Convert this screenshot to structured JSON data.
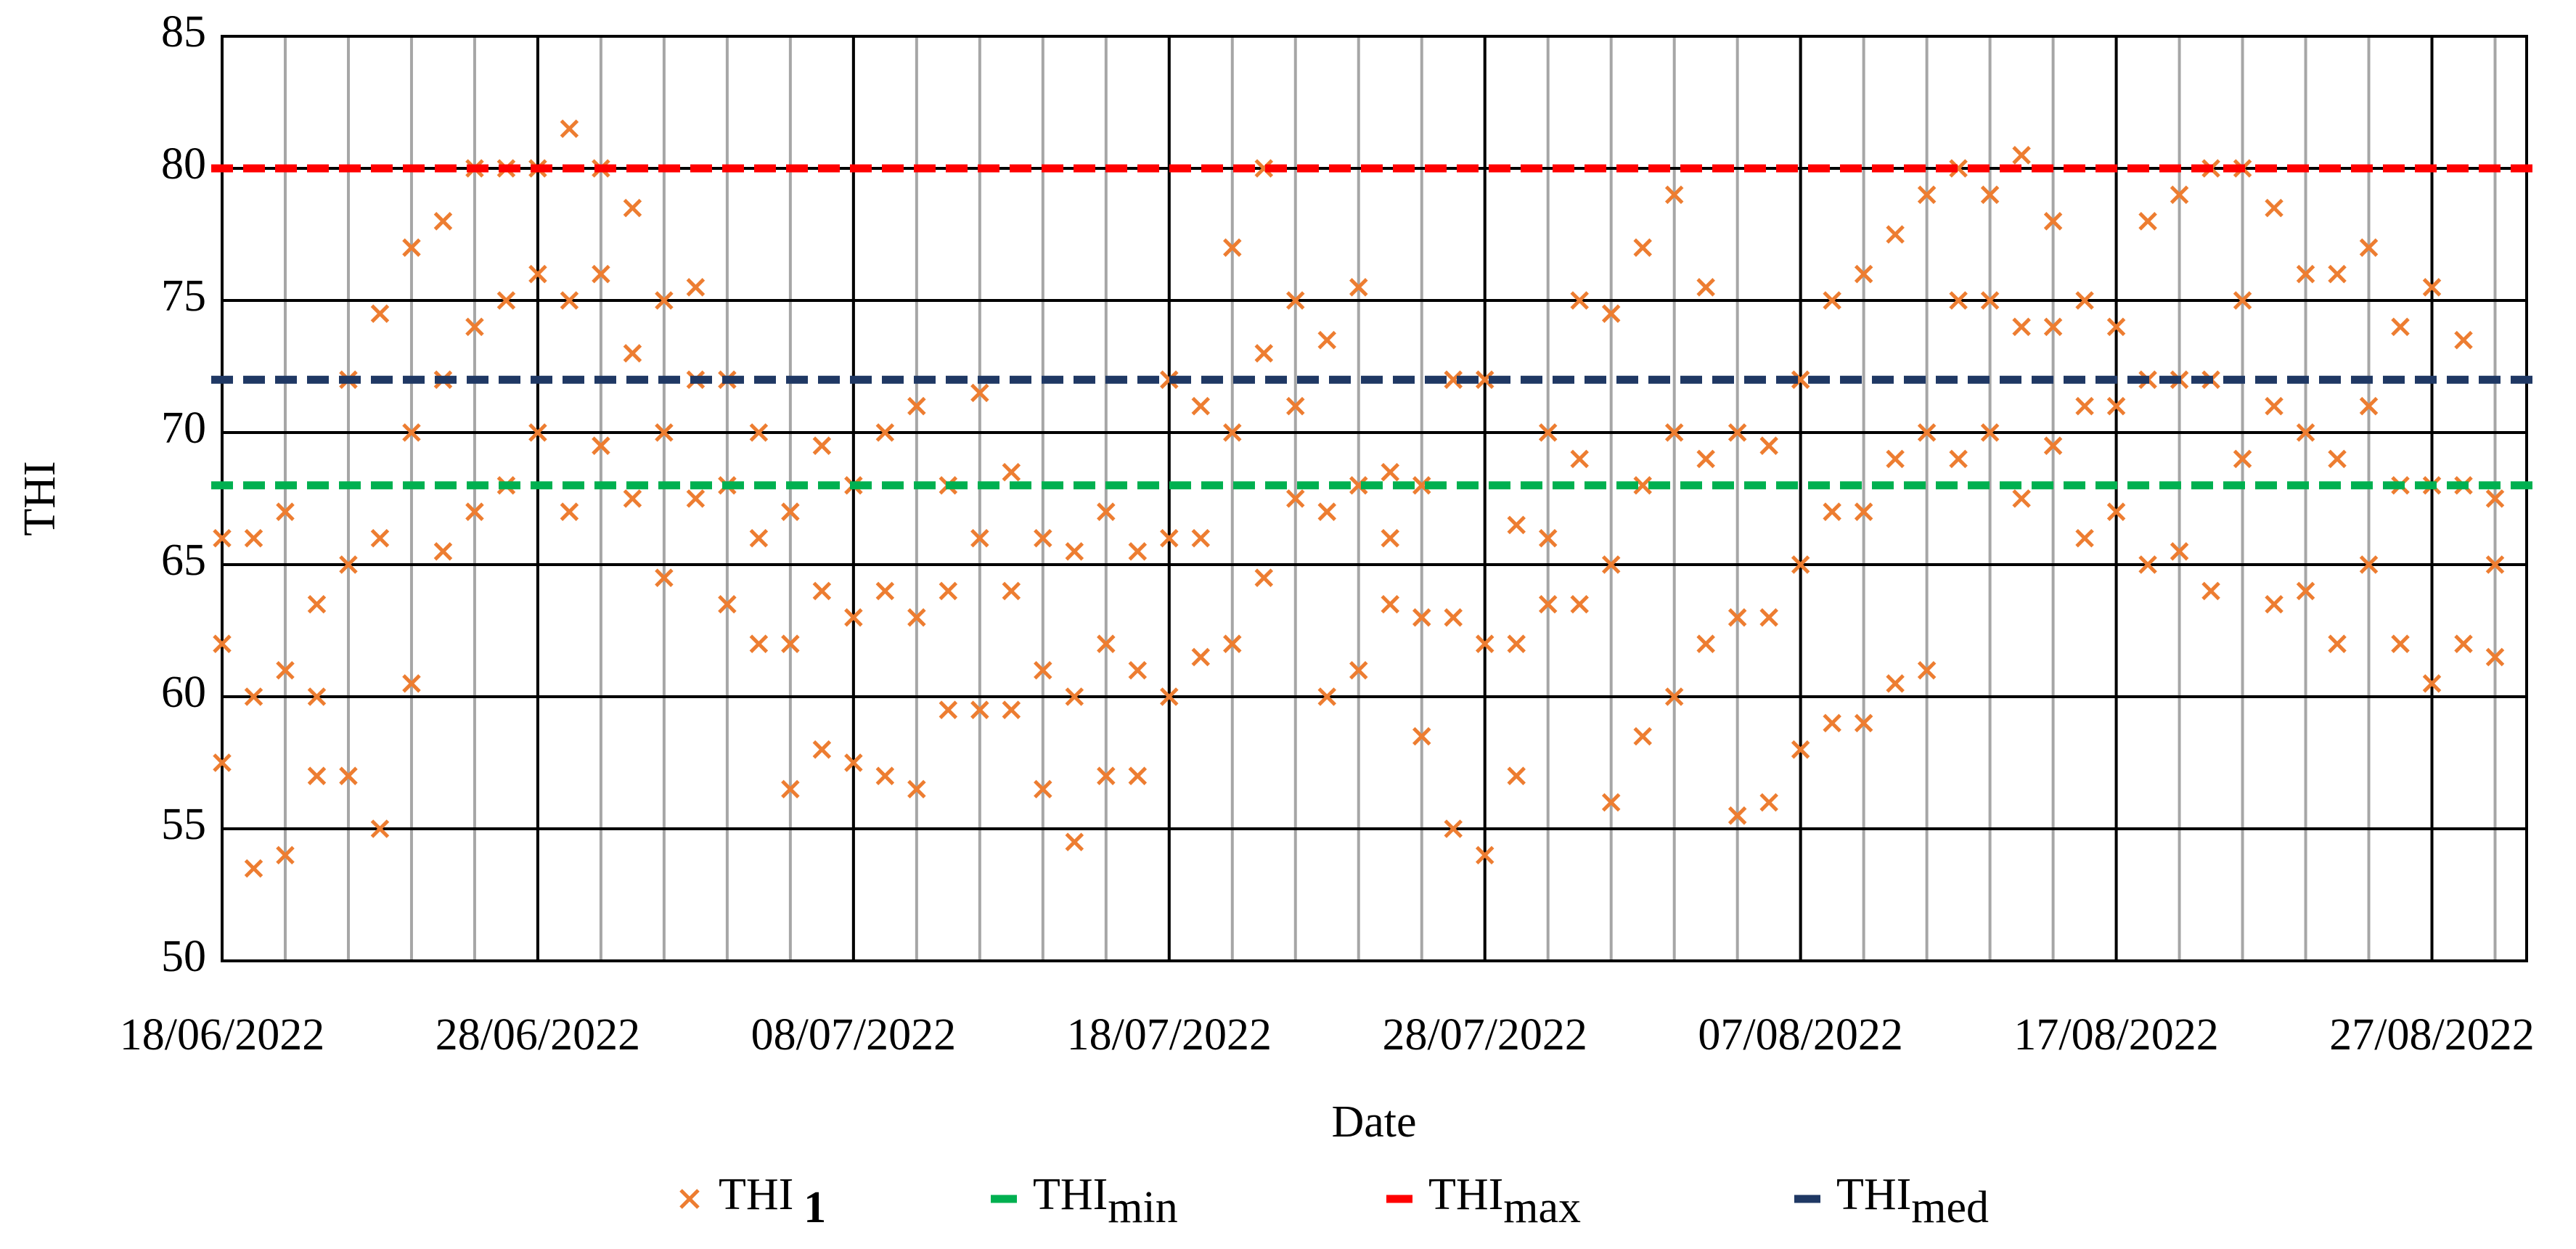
{
  "chart_data": {
    "type": "scatter",
    "x_label": "Date",
    "y_label": "THI",
    "xlim": [
      "18/06/2022",
      "30/08/2022"
    ],
    "xticks": [
      "18/06/2022",
      "28/06/2022",
      "08/07/2022",
      "18/07/2022",
      "28/07/2022",
      "07/08/2022",
      "17/08/2022",
      "27/08/2022"
    ],
    "minor_grid_step_days": 2,
    "ylim": [
      50,
      85
    ],
    "yticks": [
      50,
      55,
      60,
      65,
      70,
      75,
      80,
      85
    ],
    "grid": true,
    "legend": "bottom",
    "x": [
      "18/06/2022",
      "19/06/2022",
      "20/06/2022",
      "21/06/2022",
      "22/06/2022",
      "23/06/2022",
      "24/06/2022",
      "25/06/2022",
      "26/06/2022",
      "27/06/2022",
      "28/06/2022",
      "29/06/2022",
      "30/06/2022",
      "01/07/2022",
      "02/07/2022",
      "03/07/2022",
      "04/07/2022",
      "05/07/2022",
      "06/07/2022",
      "07/07/2022",
      "08/07/2022",
      "09/07/2022",
      "10/07/2022",
      "11/07/2022",
      "12/07/2022",
      "13/07/2022",
      "14/07/2022",
      "15/07/2022",
      "16/07/2022",
      "17/07/2022",
      "18/07/2022",
      "19/07/2022",
      "20/07/2022",
      "21/07/2022",
      "22/07/2022",
      "23/07/2022",
      "24/07/2022",
      "25/07/2022",
      "26/07/2022",
      "27/07/2022",
      "28/07/2022",
      "29/07/2022",
      "30/07/2022",
      "31/07/2022",
      "01/08/2022",
      "02/08/2022",
      "03/08/2022",
      "04/08/2022",
      "05/08/2022",
      "06/08/2022",
      "07/08/2022",
      "08/08/2022",
      "09/08/2022",
      "10/08/2022",
      "11/08/2022",
      "12/08/2022",
      "13/08/2022",
      "14/08/2022",
      "15/08/2022",
      "16/08/2022",
      "17/08/2022",
      "18/08/2022",
      "19/08/2022",
      "20/08/2022",
      "21/08/2022",
      "22/08/2022",
      "23/08/2022",
      "24/08/2022",
      "25/08/2022",
      "26/08/2022",
      "27/08/2022",
      "28/08/2022",
      "29/08/2022"
    ],
    "series": [
      {
        "name": "THI",
        "subscript": "1",
        "color": "#ed7d31",
        "marker": "x",
        "values": [
          [
            57.5,
            62,
            66
          ],
          [
            53.5,
            60,
            66
          ],
          [
            54,
            61,
            67
          ],
          [
            57,
            60,
            63.5
          ],
          [
            57,
            65,
            72
          ],
          [
            55,
            66,
            74.5
          ],
          [
            60.5,
            70,
            77
          ],
          [
            65.5,
            72,
            78
          ],
          [
            67,
            74,
            80
          ],
          [
            68,
            75,
            80
          ],
          [
            70,
            76,
            80
          ],
          [
            67,
            75,
            81.5
          ],
          [
            69.5,
            76,
            80
          ],
          [
            67.5,
            73,
            78.5
          ],
          [
            64.5,
            70,
            75
          ],
          [
            67.5,
            72,
            75.5
          ],
          [
            63.5,
            68,
            72
          ],
          [
            62,
            66,
            70
          ],
          [
            56.5,
            62,
            67
          ],
          [
            58,
            64,
            69.5
          ],
          [
            57.5,
            63,
            68
          ],
          [
            57,
            64,
            70
          ],
          [
            56.5,
            63,
            71
          ],
          [
            59.5,
            64,
            68
          ],
          [
            59.5,
            66,
            71.5
          ],
          [
            59.5,
            64,
            68.5
          ],
          [
            56.5,
            61,
            66
          ],
          [
            54.5,
            60,
            65.5
          ],
          [
            57,
            62,
            67
          ],
          [
            57,
            61,
            65.5
          ],
          [
            60,
            66,
            72
          ],
          [
            61.5,
            66,
            71
          ],
          [
            62,
            70,
            77
          ],
          [
            64.5,
            73,
            80
          ],
          [
            67.5,
            71,
            75
          ],
          [
            60,
            67,
            73.5
          ],
          [
            61,
            68,
            75.5
          ],
          [
            63.5,
            66,
            68.5
          ],
          [
            58.5,
            63,
            68
          ],
          [
            55,
            63,
            72
          ],
          [
            54,
            62,
            72
          ],
          [
            57,
            62,
            66.5
          ],
          [
            63.5,
            66,
            70
          ],
          [
            63.5,
            69,
            75
          ],
          [
            56,
            65,
            74.5
          ],
          [
            58.5,
            68,
            77
          ],
          [
            60,
            70,
            79
          ],
          [
            62,
            69,
            75.5
          ],
          [
            55.5,
            63,
            70
          ],
          [
            56,
            63,
            69.5
          ],
          [
            58,
            65,
            72
          ],
          [
            59,
            67,
            75
          ],
          [
            59,
            67,
            76
          ],
          [
            60.5,
            69,
            77.5
          ],
          [
            61,
            70,
            79
          ],
          [
            69,
            75,
            80
          ],
          [
            70,
            75,
            79
          ],
          [
            67.5,
            74,
            80.5
          ],
          [
            69.5,
            74,
            78
          ],
          [
            66,
            71,
            75
          ],
          [
            67,
            71,
            74
          ],
          [
            65,
            72,
            78
          ],
          [
            65.5,
            72,
            79
          ],
          [
            64,
            72,
            80
          ],
          [
            69,
            75,
            80
          ],
          [
            63.5,
            71,
            78.5
          ],
          [
            64,
            70,
            76
          ],
          [
            62,
            69,
            76
          ],
          [
            65,
            71,
            77
          ],
          [
            62,
            68,
            74
          ],
          [
            60.5,
            68,
            75.5
          ],
          [
            62,
            68,
            73.5
          ],
          [
            61.5,
            65,
            67.5
          ]
        ]
      },
      {
        "name": "THI",
        "subscript": "min",
        "color": "#00b050",
        "marker": "hline",
        "values": [
          68
        ]
      },
      {
        "name": "THI",
        "subscript": "max",
        "color": "#ff0000",
        "marker": "hline",
        "values": [
          80
        ]
      },
      {
        "name": "THI",
        "subscript": "med",
        "color": "#1f3864",
        "marker": "hline",
        "values": [
          72
        ]
      }
    ]
  }
}
